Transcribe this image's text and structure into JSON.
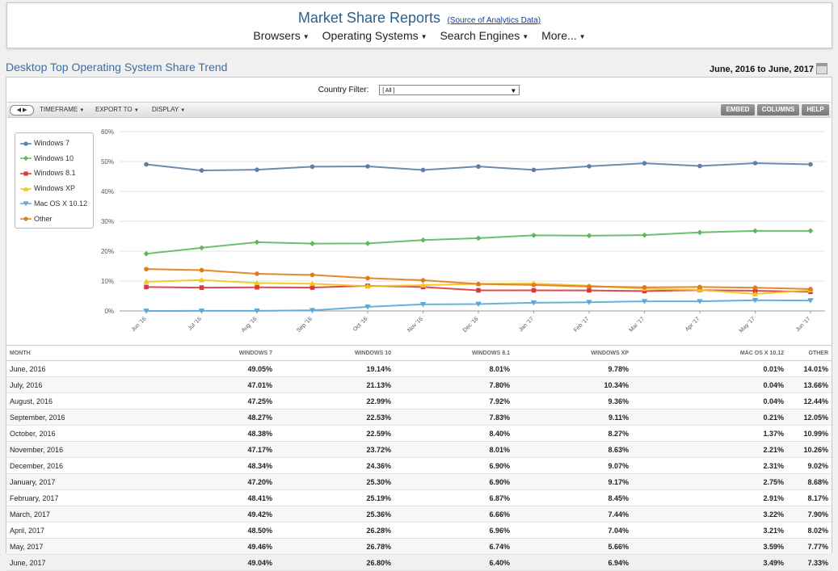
{
  "header": {
    "title": "Market Share Reports",
    "source_link": "(Source of Analytics Data)",
    "nav": [
      "Browsers",
      "Operating Systems",
      "Search Engines",
      "More..."
    ]
  },
  "page": {
    "title": "Desktop Top Operating System Share Trend",
    "date_range": "June, 2016 to June, 2017"
  },
  "filter": {
    "label": "Country Filter:",
    "value": "[ All ]"
  },
  "toolbar": {
    "timeframe": "TIMEFRAME",
    "export": "EXPORT TO",
    "display": "DISPLAY",
    "embed": "EMBED",
    "columns": "COLUMNS",
    "help": "HELP"
  },
  "colors": {
    "windows7": "#5b7fa6",
    "windows10": "#5cb85c",
    "windows81": "#d9363e",
    "windowsxp": "#f0c419",
    "mac": "#5aa7d8",
    "other": "#e07b1a"
  },
  "chart_data": {
    "type": "line",
    "categories": [
      "Jun '16",
      "Jul '16",
      "Aug '16",
      "Sep '16",
      "Oct '16",
      "Nov '16",
      "Dec '16",
      "Jan '17",
      "Feb '17",
      "Mar '17",
      "Apr '17",
      "May '17",
      "Jun '17"
    ],
    "ylim": [
      0,
      60
    ],
    "y_ticks": [
      "0%",
      "10%",
      "20%",
      "30%",
      "40%",
      "50%",
      "60%"
    ],
    "legend_position": "top-left",
    "series": [
      {
        "name": "Windows 7",
        "key": "windows7",
        "marker": "circle",
        "values": [
          49.05,
          47.01,
          47.25,
          48.27,
          48.38,
          47.17,
          48.34,
          47.2,
          48.41,
          49.42,
          48.5,
          49.46,
          49.04
        ]
      },
      {
        "name": "Windows 10",
        "key": "windows10",
        "marker": "diamond",
        "values": [
          19.14,
          21.13,
          22.99,
          22.53,
          22.59,
          23.72,
          24.36,
          25.3,
          25.19,
          25.36,
          26.28,
          26.78,
          26.8
        ]
      },
      {
        "name": "Windows 8.1",
        "key": "windows81",
        "marker": "square",
        "values": [
          8.01,
          7.8,
          7.92,
          7.83,
          8.4,
          8.01,
          6.9,
          6.9,
          6.87,
          6.66,
          6.96,
          6.74,
          6.4
        ]
      },
      {
        "name": "Windows XP",
        "key": "windowsxp",
        "marker": "triangle-up",
        "values": [
          9.78,
          10.34,
          9.36,
          9.11,
          8.27,
          8.63,
          9.07,
          9.17,
          8.45,
          7.44,
          7.04,
          5.66,
          6.94
        ]
      },
      {
        "name": "Mac OS X 10.12",
        "key": "mac",
        "marker": "triangle-down",
        "values": [
          0.01,
          0.04,
          0.04,
          0.21,
          1.37,
          2.21,
          2.31,
          2.75,
          2.91,
          3.22,
          3.21,
          3.59,
          3.49
        ]
      },
      {
        "name": "Other",
        "key": "other",
        "marker": "circle",
        "values": [
          14.01,
          13.66,
          12.44,
          12.05,
          10.99,
          10.26,
          9.02,
          8.68,
          8.17,
          7.9,
          8.02,
          7.77,
          7.33
        ]
      }
    ]
  },
  "table": {
    "headers": [
      "MONTH",
      "WINDOWS 7",
      "WINDOWS 10",
      "WINDOWS 8.1",
      "WINDOWS XP",
      "MAC OS X 10.12",
      "OTHER"
    ],
    "rows": [
      [
        "June, 2016",
        "49.05%",
        "19.14%",
        "8.01%",
        "9.78%",
        "0.01%",
        "14.01%"
      ],
      [
        "July, 2016",
        "47.01%",
        "21.13%",
        "7.80%",
        "10.34%",
        "0.04%",
        "13.66%"
      ],
      [
        "August, 2016",
        "47.25%",
        "22.99%",
        "7.92%",
        "9.36%",
        "0.04%",
        "12.44%"
      ],
      [
        "September, 2016",
        "48.27%",
        "22.53%",
        "7.83%",
        "9.11%",
        "0.21%",
        "12.05%"
      ],
      [
        "October, 2016",
        "48.38%",
        "22.59%",
        "8.40%",
        "8.27%",
        "1.37%",
        "10.99%"
      ],
      [
        "November, 2016",
        "47.17%",
        "23.72%",
        "8.01%",
        "8.63%",
        "2.21%",
        "10.26%"
      ],
      [
        "December, 2016",
        "48.34%",
        "24.36%",
        "6.90%",
        "9.07%",
        "2.31%",
        "9.02%"
      ],
      [
        "January, 2017",
        "47.20%",
        "25.30%",
        "6.90%",
        "9.17%",
        "2.75%",
        "8.68%"
      ],
      [
        "February, 2017",
        "48.41%",
        "25.19%",
        "6.87%",
        "8.45%",
        "2.91%",
        "8.17%"
      ],
      [
        "March, 2017",
        "49.42%",
        "25.36%",
        "6.66%",
        "7.44%",
        "3.22%",
        "7.90%"
      ],
      [
        "April, 2017",
        "48.50%",
        "26.28%",
        "6.96%",
        "7.04%",
        "3.21%",
        "8.02%"
      ],
      [
        "May, 2017",
        "49.46%",
        "26.78%",
        "6.74%",
        "5.66%",
        "3.59%",
        "7.77%"
      ],
      [
        "June, 2017",
        "49.04%",
        "26.80%",
        "6.40%",
        "6.94%",
        "3.49%",
        "7.33%"
      ]
    ]
  }
}
